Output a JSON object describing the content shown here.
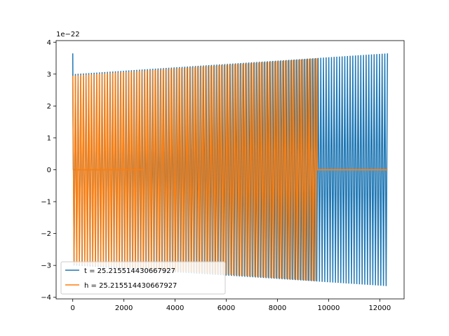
{
  "chart_data": {
    "type": "line",
    "title": "",
    "xlabel": "",
    "ylabel": "",
    "y_scale_label": "1e−22",
    "xlim": [
      -650,
      12950
    ],
    "ylim": [
      -4.05,
      4.05
    ],
    "x_ticks": [
      0,
      2000,
      4000,
      6000,
      8000,
      10000,
      12000
    ],
    "x_tick_labels": [
      "0",
      "2000",
      "4000",
      "6000",
      "8000",
      "10000",
      "12000"
    ],
    "y_ticks": [
      -4,
      -3,
      -2,
      -1,
      0,
      1,
      2,
      3,
      4
    ],
    "y_tick_labels": [
      "−4",
      "−3",
      "−2",
      "−1",
      "0",
      "1",
      "2",
      "3",
      "4"
    ],
    "legend_position": "lower-left",
    "series": [
      {
        "name": "t = 25.215514430667927",
        "color": "#1f77b4",
        "description": "oscillation from x=0 to 12300, amplitude growing 3.0 to 3.65 (1e-22); gap near zero 40-2750",
        "x_start": 0,
        "x_end": 12300,
        "cycles": 118,
        "amplitude_start": 3.0,
        "amplitude_end": 3.65,
        "initial_spike": 3.65,
        "flat_segments": [
          [
            40,
            2750
          ]
        ]
      },
      {
        "name": "h = 25.215514430667927",
        "color": "#ff7f0e",
        "description": "oscillation from x=0 to 9550 then flat at zero to 12300; flat near zero 60-2750",
        "x_start": 0,
        "x_end": 12300,
        "osc_end": 9550,
        "cycles": 92,
        "amplitude_start": 2.95,
        "amplitude_end": 3.65,
        "flat_segments": [
          [
            60,
            2750
          ],
          [
            9550,
            12300
          ]
        ]
      }
    ]
  }
}
